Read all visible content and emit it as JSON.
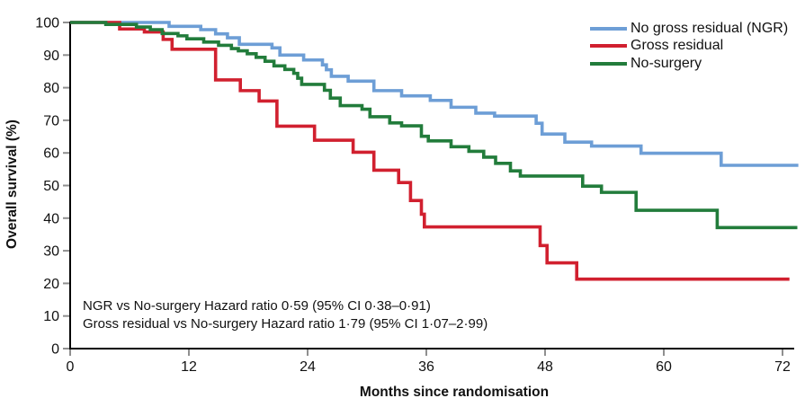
{
  "chart_data": {
    "type": "line",
    "subtype": "kaplan-meier-step",
    "title": "",
    "xlabel": "Months since randomisation",
    "ylabel": "Overall survival (%)",
    "xlim": [
      0,
      74
    ],
    "ylim": [
      0,
      100
    ],
    "x_ticks": [
      0,
      12,
      24,
      36,
      48,
      60,
      72
    ],
    "y_ticks": [
      0,
      10,
      20,
      30,
      40,
      50,
      60,
      70,
      80,
      90,
      100
    ],
    "grid": false,
    "legend_position": "top-right",
    "axis_color": "#000000",
    "tick_color": "#8f8f8f",
    "series": [
      {
        "name": "No gross residual (NGR)",
        "color": "#6D9ED6",
        "points": [
          [
            0,
            100
          ],
          [
            10,
            98.8
          ],
          [
            13.2,
            97.8
          ],
          [
            14.7,
            96.5
          ],
          [
            15.9,
            95.3
          ],
          [
            17.1,
            93.3
          ],
          [
            20.4,
            92.2
          ],
          [
            21.2,
            90.0
          ],
          [
            23.6,
            88.5
          ],
          [
            25.5,
            87.0
          ],
          [
            25.9,
            85.5
          ],
          [
            26.4,
            83.5
          ],
          [
            28.1,
            82.0
          ],
          [
            30.7,
            79.1
          ],
          [
            33.5,
            77.5
          ],
          [
            36.4,
            76.1
          ],
          [
            38.5,
            74.0
          ],
          [
            41.0,
            72.2
          ],
          [
            42.9,
            71.3
          ],
          [
            47.1,
            69.1
          ],
          [
            47.7,
            65.8
          ],
          [
            50.0,
            63.3
          ],
          [
            52.7,
            62.1
          ],
          [
            57.7,
            59.9
          ],
          [
            65.8,
            56.2
          ],
          [
            73.6,
            56.2
          ]
        ]
      },
      {
        "name": "Gross residual",
        "color": "#D1202F",
        "points": [
          [
            0,
            100
          ],
          [
            5.0,
            98.0
          ],
          [
            7.5,
            97.1
          ],
          [
            9.4,
            94.8
          ],
          [
            10.3,
            91.8
          ],
          [
            14.7,
            82.4
          ],
          [
            17.2,
            79.1
          ],
          [
            19.1,
            75.9
          ],
          [
            20.9,
            68.2
          ],
          [
            24.7,
            63.9
          ],
          [
            28.6,
            60.2
          ],
          [
            30.7,
            54.7
          ],
          [
            33.2,
            50.9
          ],
          [
            34.4,
            45.4
          ],
          [
            35.5,
            41.2
          ],
          [
            35.8,
            37.3
          ],
          [
            47.5,
            31.6
          ],
          [
            48.2,
            26.3
          ],
          [
            51.2,
            21.3
          ],
          [
            72.7,
            21.3
          ]
        ]
      },
      {
        "name": "No-surgery",
        "color": "#227C3B",
        "points": [
          [
            0,
            100
          ],
          [
            3.6,
            99.4
          ],
          [
            6.7,
            98.6
          ],
          [
            8.1,
            97.8
          ],
          [
            9.3,
            96.6
          ],
          [
            10.9,
            95.9
          ],
          [
            11.8,
            95.0
          ],
          [
            13.5,
            94.0
          ],
          [
            15.0,
            93.0
          ],
          [
            16.3,
            92.0
          ],
          [
            17.0,
            91.3
          ],
          [
            17.9,
            90.4
          ],
          [
            18.8,
            89.3
          ],
          [
            19.7,
            88.1
          ],
          [
            20.6,
            86.7
          ],
          [
            21.7,
            85.6
          ],
          [
            22.6,
            84.4
          ],
          [
            23.0,
            82.9
          ],
          [
            23.4,
            81.0
          ],
          [
            25.7,
            79.2
          ],
          [
            26.3,
            76.8
          ],
          [
            27.3,
            74.5
          ],
          [
            29.5,
            73.4
          ],
          [
            30.3,
            71.1
          ],
          [
            32.3,
            69.2
          ],
          [
            33.5,
            68.3
          ],
          [
            35.5,
            65.1
          ],
          [
            36.2,
            63.7
          ],
          [
            38.5,
            61.9
          ],
          [
            40.3,
            60.5
          ],
          [
            41.8,
            58.7
          ],
          [
            43.0,
            56.8
          ],
          [
            44.5,
            54.5
          ],
          [
            45.5,
            52.9
          ],
          [
            51.8,
            49.8
          ],
          [
            53.7,
            47.9
          ],
          [
            57.2,
            42.4
          ],
          [
            65.4,
            37.1
          ],
          [
            73.5,
            37.1
          ]
        ]
      }
    ],
    "annotations": [
      "NGR vs No-surgery Hazard ratio 0·59 (95% CI 0·38–0·91)",
      "Gross residual vs No-surgery Hazard ratio 1·79 (95% CI 1·07–2·99)"
    ]
  }
}
